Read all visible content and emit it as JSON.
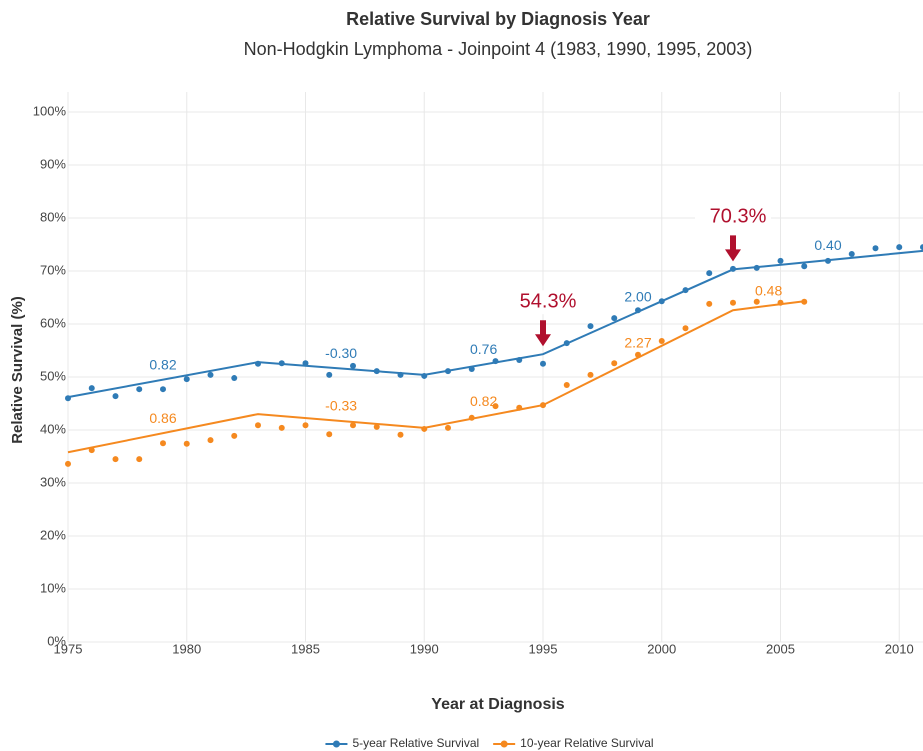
{
  "chart_data": {
    "type": "line",
    "title": "Relative Survival by Diagnosis Year",
    "subtitle": "Non-Hodgkin Lymphoma - Joinpoint 4 (1983, 1990, 1995, 2003)",
    "x_label": "Year at Diagnosis",
    "y_label": "Relative Survival (%)",
    "xlim": [
      1975,
      2011
    ],
    "xticks": [
      1975,
      1980,
      1985,
      1990,
      1995,
      2000,
      2005,
      2010
    ],
    "ylim": [
      0,
      100
    ],
    "yticks": [
      {
        "value": 0,
        "label": "0%"
      },
      {
        "value": 10,
        "label": "10%"
      },
      {
        "value": 20,
        "label": "20%"
      },
      {
        "value": 30,
        "label": "30%"
      },
      {
        "value": 40,
        "label": "40%"
      },
      {
        "value": 50,
        "label": "50%"
      },
      {
        "value": 60,
        "label": "60%"
      },
      {
        "value": 70,
        "label": "70%"
      },
      {
        "value": 80,
        "label": "80%"
      },
      {
        "value": 90,
        "label": "90%"
      },
      {
        "value": 100,
        "label": "100%"
      }
    ],
    "grid": true,
    "legend": "bottom",
    "series": [
      {
        "name": "5-year Relative Survival",
        "color": "#2f7bb6",
        "x": [
          1975,
          1976,
          1977,
          1978,
          1979,
          1980,
          1981,
          1982,
          1983,
          1984,
          1985,
          1986,
          1987,
          1988,
          1989,
          1990,
          1991,
          1992,
          1993,
          1994,
          1995,
          1996,
          1997,
          1998,
          1999,
          2000,
          2001,
          2002,
          2003,
          2004,
          2005,
          2006,
          2007,
          2008,
          2009,
          2010,
          2011
        ],
        "values": [
          46.0,
          47.9,
          46.4,
          47.7,
          47.7,
          49.6,
          50.4,
          49.8,
          52.5,
          52.6,
          52.6,
          50.4,
          52.1,
          51.1,
          50.4,
          50.2,
          51.1,
          51.5,
          53.0,
          53.2,
          52.5,
          56.4,
          59.6,
          61.1,
          62.6,
          64.3,
          66.4,
          69.6,
          70.4,
          70.6,
          71.9,
          70.9,
          71.9,
          73.2,
          74.3,
          74.5,
          74.5
        ],
        "fit_x": [
          1975,
          1983,
          1990,
          1995,
          2003,
          2011
        ],
        "fit_values": [
          46.2,
          52.8,
          50.4,
          54.3,
          70.3,
          73.8
        ],
        "segment_labels": [
          "0.82",
          "-0.30",
          "0.76",
          "2.00",
          "0.40"
        ]
      },
      {
        "name": "10-year Relative Survival",
        "color": "#f5891f",
        "x": [
          1975,
          1976,
          1977,
          1978,
          1979,
          1980,
          1981,
          1982,
          1983,
          1984,
          1985,
          1986,
          1987,
          1988,
          1989,
          1990,
          1991,
          1992,
          1993,
          1994,
          1995,
          1996,
          1997,
          1998,
          1999,
          2000,
          2001,
          2002,
          2003,
          2004,
          2005,
          2006
        ],
        "values": [
          33.6,
          36.2,
          34.5,
          34.5,
          37.5,
          37.4,
          38.1,
          38.9,
          40.9,
          40.4,
          40.9,
          39.2,
          40.9,
          40.6,
          39.1,
          40.2,
          40.4,
          42.3,
          44.5,
          44.2,
          44.7,
          48.5,
          50.4,
          52.6,
          54.2,
          56.8,
          59.2,
          63.8,
          64.0,
          64.2,
          64.0,
          64.2
        ],
        "fit_x": [
          1975,
          1983,
          1990,
          1995,
          2003,
          2006
        ],
        "fit_values": [
          35.8,
          43.0,
          40.4,
          44.7,
          62.6,
          64.3
        ],
        "segment_labels": [
          "0.86",
          "-0.33",
          "0.82",
          "2.27",
          "0.48"
        ]
      }
    ],
    "annotations": [
      {
        "x": 1995,
        "value": 54.3,
        "label": "54.3%",
        "color": "#b0102e"
      },
      {
        "x": 2003,
        "value": 70.3,
        "label": "70.3%",
        "color": "#b0102e"
      }
    ]
  }
}
